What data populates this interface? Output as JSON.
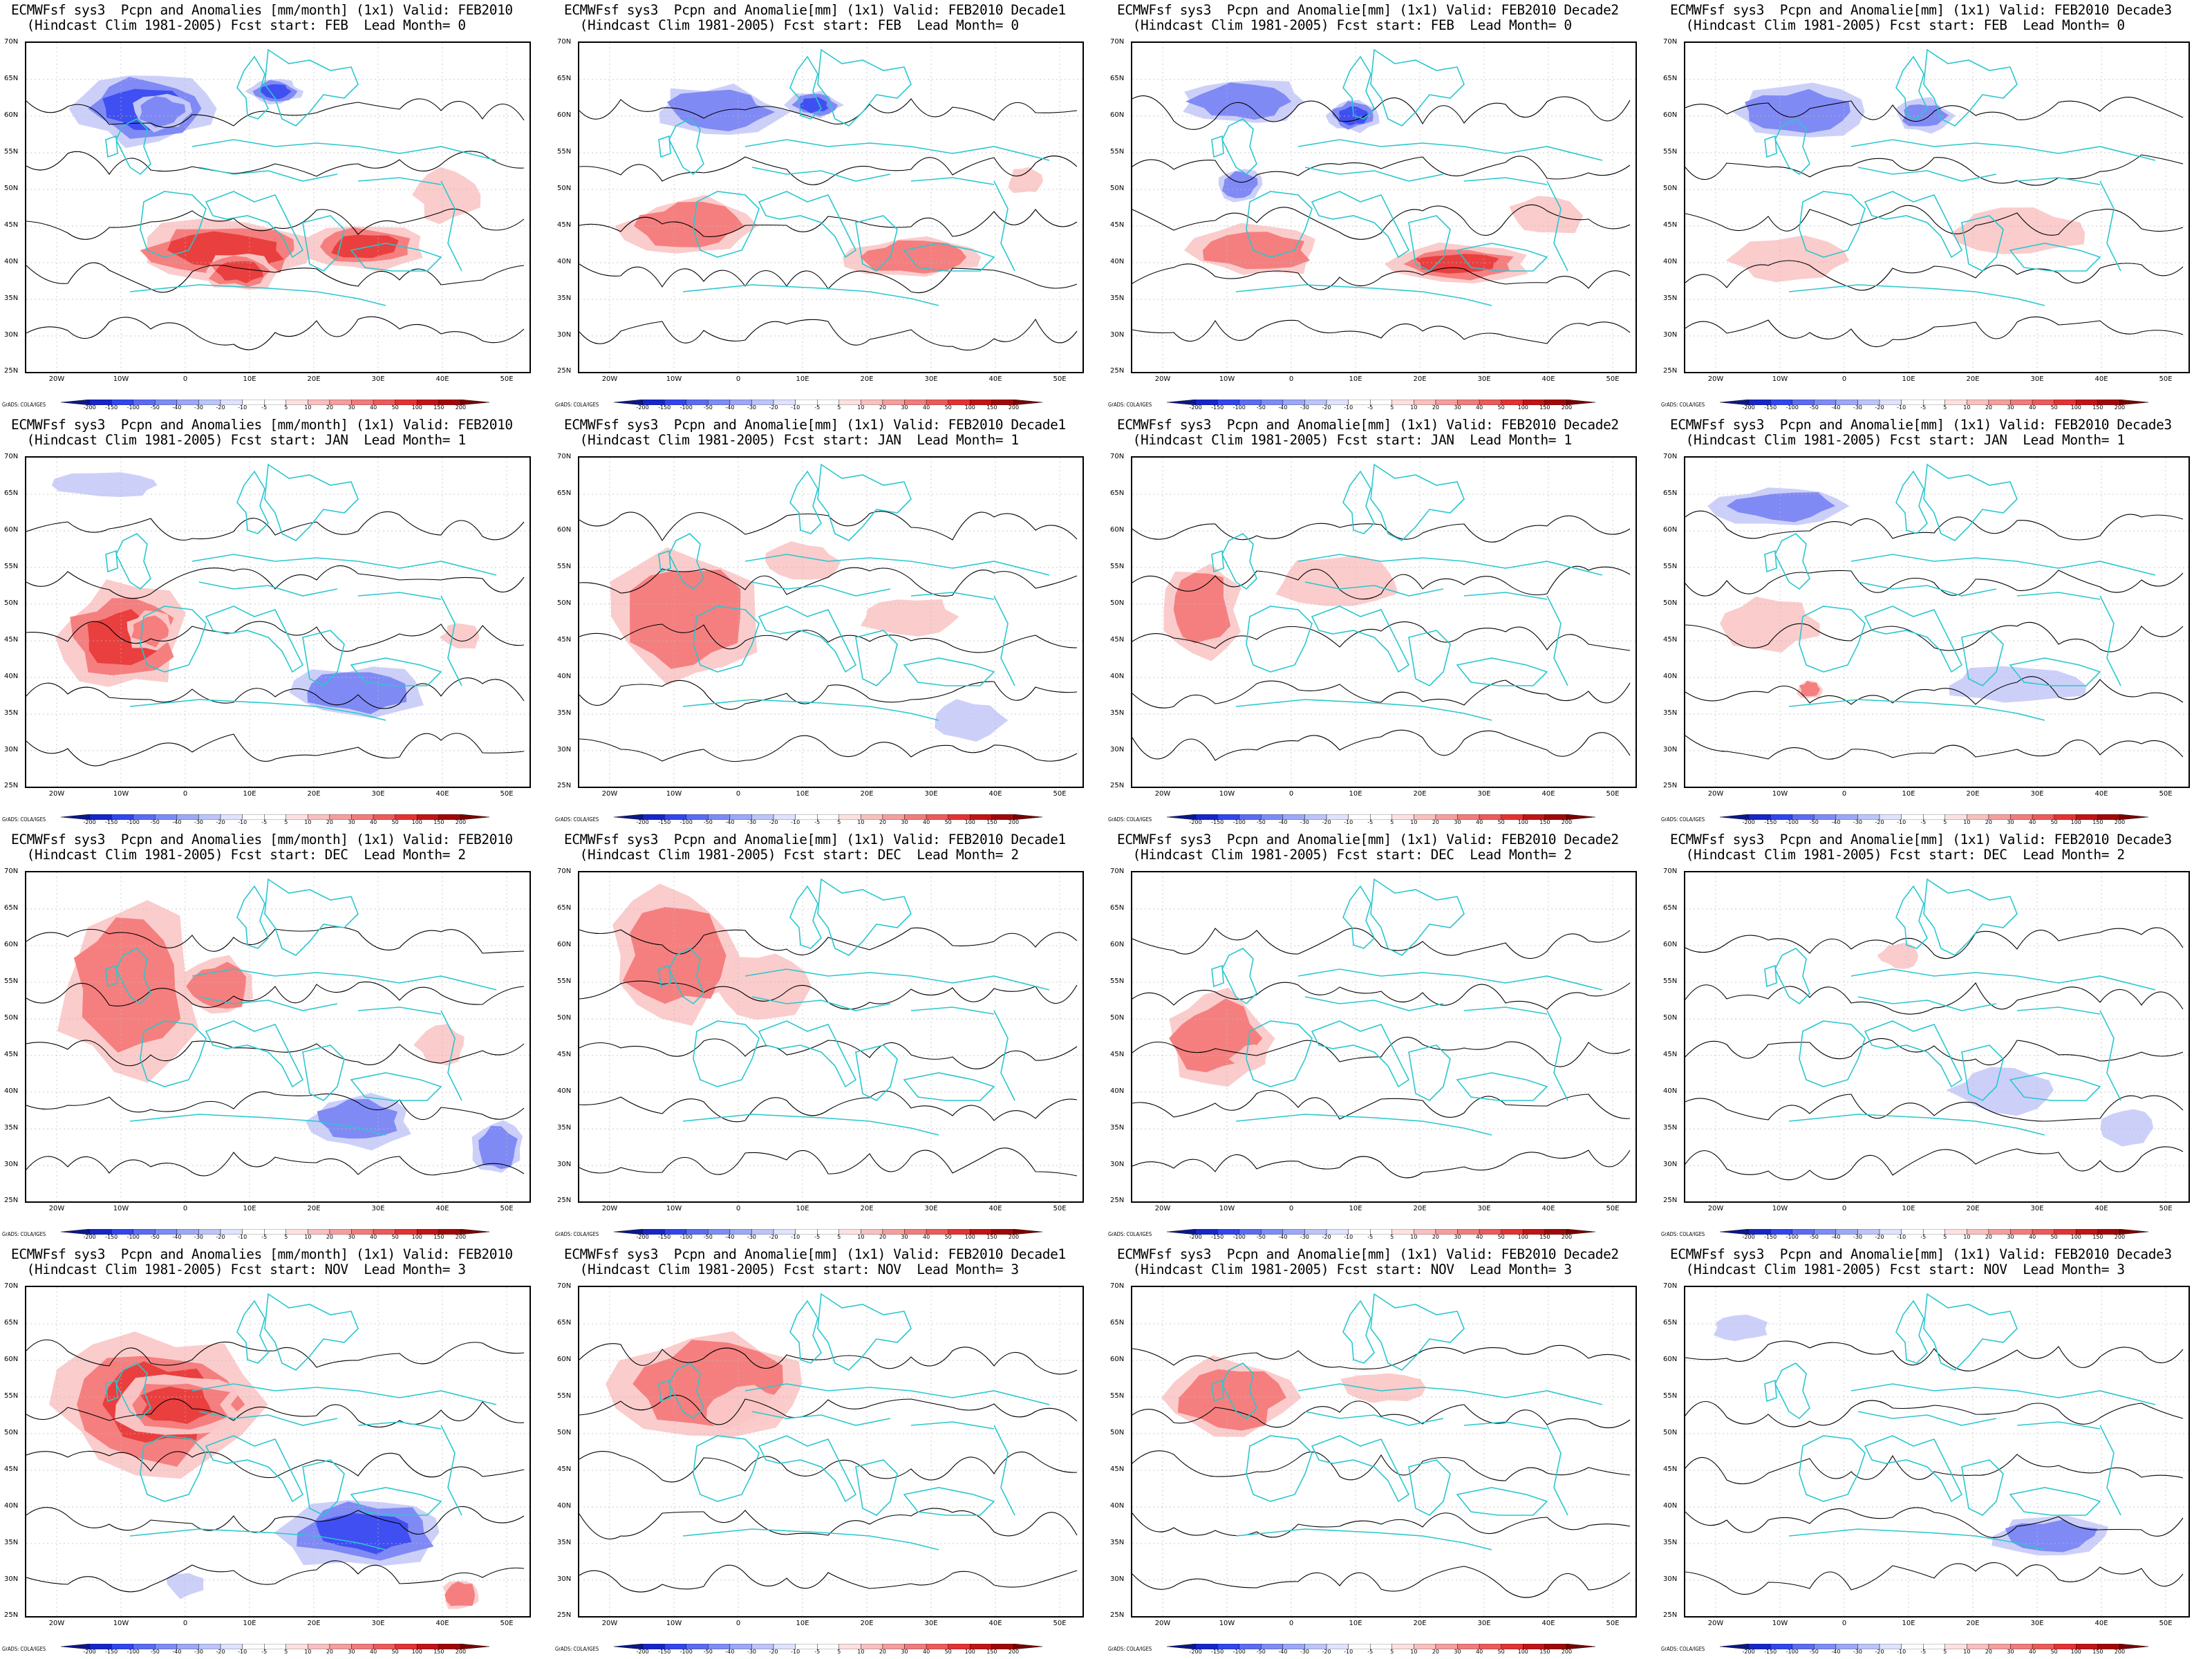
{
  "colors": {
    "positive_strong": "#e83c3c",
    "positive_mid": "#f47a7a",
    "positive_light": "#fbc9c9",
    "negative_strong": "#3c4cf0",
    "negative_mid": "#7b86f4",
    "negative_light": "#c9cdf9",
    "coast": "#29c7cf",
    "contour": "#000000"
  },
  "colorbar": {
    "ticks": [
      "-200",
      "-150",
      "-100",
      "-50",
      "-40",
      "-30",
      "-20",
      "-10",
      "-5",
      "5",
      "10",
      "20",
      "30",
      "40",
      "50",
      "100",
      "150",
      "200"
    ],
    "swatches": [
      "#0c1788",
      "#1626c8",
      "#3146ee",
      "#5b6cf2",
      "#7d8cf5",
      "#9ca8f7",
      "#bcc5fa",
      "#dfe3fd",
      "#ffffff",
      "#ffffff",
      "#fde1e1",
      "#f9c0c0",
      "#f59e9e",
      "#f17c7c",
      "#ec5a5a",
      "#e43232",
      "#c21414",
      "#a00808",
      "#7a0000"
    ]
  },
  "axes": {
    "lat_labels": [
      "70N",
      "65N",
      "60N",
      "55N",
      "50N",
      "45N",
      "40N",
      "35N",
      "30N",
      "25N"
    ],
    "lon_labels": [
      "20W",
      "10W",
      "0",
      "10E",
      "20E",
      "30E",
      "40E",
      "50E"
    ],
    "credit": "GrADS: COLA/IGES"
  },
  "panels": [
    {
      "line1": "ECMWFsf sys3  Pcpn and Anomalies [mm/month] (1x1) Valid: FEB2010",
      "line2": "  (Hindcast Clim 1981-2005) Fcst start: FEB  Lead Month= 0",
      "pattern": "r0c0"
    },
    {
      "line1": "ECMWFsf sys3  Pcpn and Anomalie[mm] (1x1) Valid: FEB2010 Decade1",
      "line2": "  (Hindcast Clim 1981-2005) Fcst start: FEB  Lead Month= 0",
      "pattern": "r0c1"
    },
    {
      "line1": "ECMWFsf sys3  Pcpn and Anomalie[mm] (1x1) Valid: FEB2010 Decade2",
      "line2": "  (Hindcast Clim 1981-2005) Fcst start: FEB  Lead Month= 0",
      "pattern": "r0c2"
    },
    {
      "line1": "ECMWFsf sys3  Pcpn and Anomalie[mm] (1x1) Valid: FEB2010 Decade3",
      "line2": "  (Hindcast Clim 1981-2005) Fcst start: FEB  Lead Month= 0",
      "pattern": "r0c3"
    },
    {
      "line1": "ECMWFsf sys3  Pcpn and Anomalies [mm/month] (1x1) Valid: FEB2010",
      "line2": "  (Hindcast Clim 1981-2005) Fcst start: JAN  Lead Month= 1",
      "pattern": "r1c0"
    },
    {
      "line1": "ECMWFsf sys3  Pcpn and Anomalie[mm] (1x1) Valid: FEB2010 Decade1",
      "line2": "  (Hindcast Clim 1981-2005) Fcst start: JAN  Lead Month= 1",
      "pattern": "r1c1"
    },
    {
      "line1": "ECMWFsf sys3  Pcpn and Anomalie[mm] (1x1) Valid: FEB2010 Decade2",
      "line2": "  (Hindcast Clim 1981-2005) Fcst start: JAN  Lead Month= 1",
      "pattern": "r1c2"
    },
    {
      "line1": "ECMWFsf sys3  Pcpn and Anomalie[mm] (1x1) Valid: FEB2010 Decade3",
      "line2": "  (Hindcast Clim 1981-2005) Fcst start: JAN  Lead Month= 1",
      "pattern": "r1c3"
    },
    {
      "line1": "ECMWFsf sys3  Pcpn and Anomalies [mm/month] (1x1) Valid: FEB2010",
      "line2": "  (Hindcast Clim 1981-2005) Fcst start: DEC  Lead Month= 2",
      "pattern": "r2c0"
    },
    {
      "line1": "ECMWFsf sys3  Pcpn and Anomalie[mm] (1x1) Valid: FEB2010 Decade1",
      "line2": "  (Hindcast Clim 1981-2005) Fcst start: DEC  Lead Month= 2",
      "pattern": "r2c1"
    },
    {
      "line1": "ECMWFsf sys3  Pcpn and Anomalie[mm] (1x1) Valid: FEB2010 Decade2",
      "line2": "  (Hindcast Clim 1981-2005) Fcst start: DEC  Lead Month= 2",
      "pattern": "r2c2"
    },
    {
      "line1": "ECMWFsf sys3  Pcpn and Anomalie[mm] (1x1) Valid: FEB2010 Decade3",
      "line2": "  (Hindcast Clim 1981-2005) Fcst start: DEC  Lead Month= 2",
      "pattern": "r2c3"
    },
    {
      "line1": "ECMWFsf sys3  Pcpn and Anomalies [mm/month] (1x1) Valid: FEB2010",
      "line2": "  (Hindcast Clim 1981-2005) Fcst start: NOV  Lead Month= 3",
      "pattern": "r3c0"
    },
    {
      "line1": "ECMWFsf sys3  Pcpn and Anomalie[mm] (1x1) Valid: FEB2010 Decade1",
      "line2": "  (Hindcast Clim 1981-2005) Fcst start: NOV  Lead Month= 3",
      "pattern": "r3c1"
    },
    {
      "line1": "ECMWFsf sys3  Pcpn and Anomalie[mm] (1x1) Valid: FEB2010 Decade2",
      "line2": "  (Hindcast Clim 1981-2005) Fcst start: NOV  Lead Month= 3",
      "pattern": "r3c2"
    },
    {
      "line1": "ECMWFsf sys3  Pcpn and Anomalie[mm] (1x1) Valid: FEB2010 Decade3",
      "line2": "  (Hindcast Clim 1981-2005) Fcst start: NOV  Lead Month= 3",
      "pattern": "r3c3"
    }
  ]
}
